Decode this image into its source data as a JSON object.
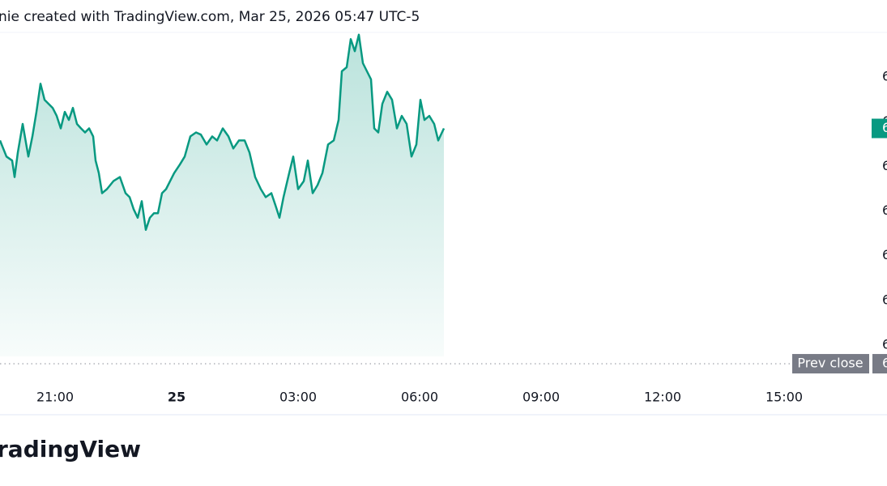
{
  "chart_data": {
    "type": "area",
    "title": "nie created with TradingView.com, Mar 25, 2026 05:47 UTC-5",
    "logo": "radingView",
    "color": "#089981",
    "x": [
      19.64,
      19.8,
      19.94,
      20.0,
      20.08,
      20.2,
      20.34,
      20.44,
      20.54,
      20.64,
      20.74,
      20.84,
      20.94,
      21.04,
      21.14,
      21.24,
      21.34,
      21.44,
      21.54,
      21.64,
      21.74,
      21.84,
      21.94,
      22.0,
      22.08,
      22.16,
      22.28,
      22.44,
      22.6,
      22.74,
      22.84,
      22.94,
      23.04,
      23.14,
      23.24,
      23.34,
      23.44,
      23.54,
      23.64,
      23.74,
      23.84,
      23.94,
      24.08,
      24.2,
      24.34,
      24.48,
      24.6,
      24.74,
      24.88,
      25.0,
      25.14,
      25.28,
      25.4,
      25.54,
      25.68,
      25.8,
      25.94,
      26.08,
      26.2,
      26.34,
      26.44,
      26.54,
      26.64,
      26.78,
      26.88,
      27.0,
      27.14,
      27.24,
      27.36,
      27.48,
      27.6,
      27.74,
      27.88,
      28.0,
      28.08,
      28.2,
      28.3,
      28.4,
      28.5,
      28.6,
      28.7,
      28.8,
      28.88,
      28.98,
      29.08,
      29.2,
      29.32,
      29.44,
      29.56,
      29.68,
      29.8,
      29.92,
      30.02,
      30.12,
      30.24,
      30.36,
      30.46,
      30.6
    ],
    "values": [
      65.58,
      65.22,
      65.13,
      64.76,
      65.31,
      65.95,
      65.22,
      65.67,
      66.22,
      66.85,
      66.49,
      66.4,
      66.31,
      66.13,
      65.85,
      66.22,
      66.04,
      66.31,
      65.95,
      65.85,
      65.76,
      65.85,
      65.67,
      65.13,
      64.85,
      64.4,
      64.49,
      64.67,
      64.76,
      64.4,
      64.31,
      64.04,
      63.85,
      64.22,
      63.58,
      63.85,
      63.95,
      63.95,
      64.4,
      64.49,
      64.67,
      64.85,
      65.04,
      65.22,
      65.67,
      65.76,
      65.71,
      65.49,
      65.67,
      65.58,
      65.85,
      65.67,
      65.4,
      65.58,
      65.58,
      65.31,
      64.76,
      64.49,
      64.31,
      64.4,
      64.13,
      63.85,
      64.31,
      64.85,
      65.22,
      64.49,
      64.67,
      65.13,
      64.4,
      64.58,
      64.85,
      65.49,
      65.58,
      66.04,
      67.13,
      67.22,
      67.85,
      67.58,
      67.95,
      67.31,
      67.13,
      66.95,
      65.85,
      65.76,
      66.4,
      66.67,
      66.49,
      65.85,
      66.13,
      65.95,
      65.22,
      65.49,
      66.49,
      66.04,
      66.13,
      65.95,
      65.58,
      65.85
    ],
    "xlim": [
      19.64,
      41.14
    ],
    "xticks": [
      {
        "value": 21,
        "label": "21:00"
      },
      {
        "value": 24,
        "label": "25"
      },
      {
        "value": 27,
        "label": "03:00"
      },
      {
        "value": 30,
        "label": "06:00"
      },
      {
        "value": 33,
        "label": "09:00"
      },
      {
        "value": 36,
        "label": "12:00"
      },
      {
        "value": 39,
        "label": "15:00"
      }
    ],
    "ylim": [
      60.2,
      68.0
    ],
    "yticks": [
      {
        "value": 67,
        "label": "6"
      },
      {
        "value": 66,
        "label": "6"
      },
      {
        "value": 65,
        "label": "6"
      },
      {
        "value": 64,
        "label": "6"
      },
      {
        "value": 63,
        "label": "6"
      },
      {
        "value": 62,
        "label": "6"
      },
      {
        "value": 61,
        "label": "6"
      }
    ],
    "last_price": {
      "value": 65.85,
      "label": "6"
    },
    "prev_close": {
      "name": "Prev close",
      "value": 60.58,
      "label": "6"
    }
  }
}
